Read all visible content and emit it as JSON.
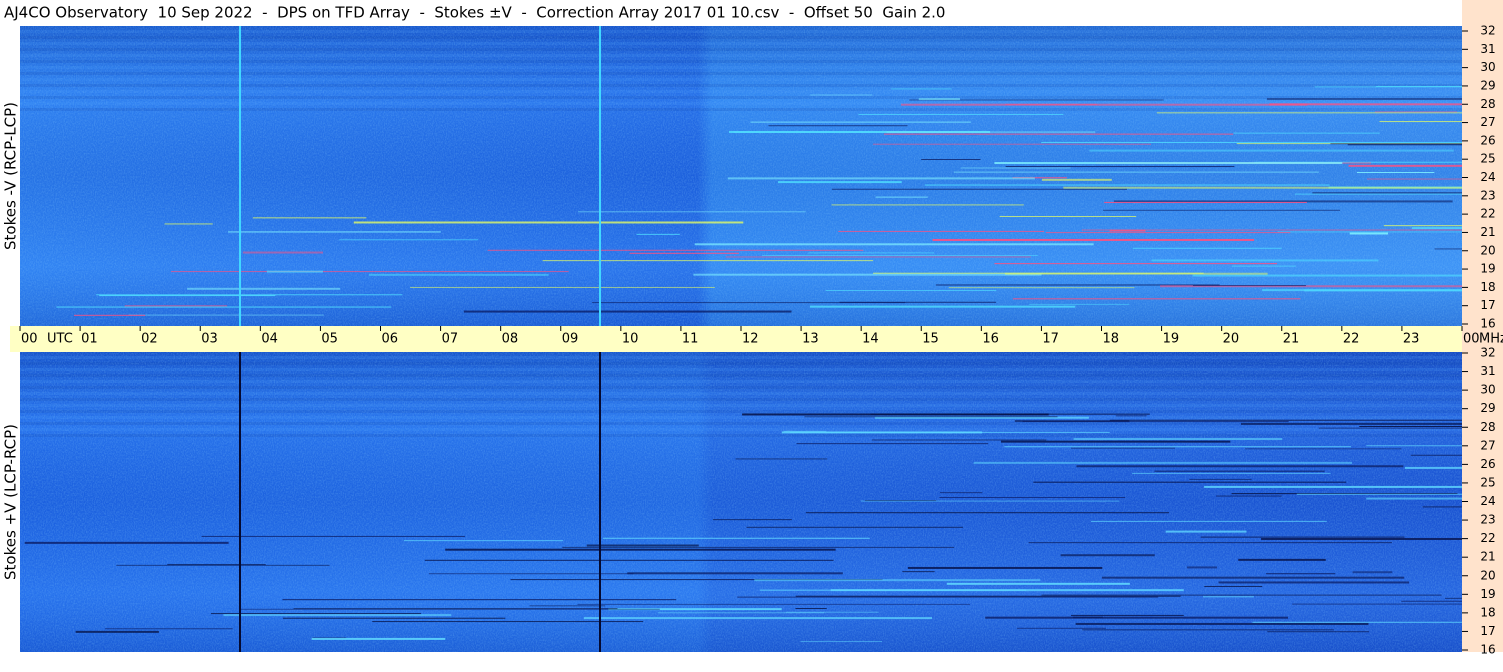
{
  "chart_data": {
    "type": "spectrogram",
    "title": "AJ4CO Observatory  10 Sep 2022  -  DPS on TFD Array  -  Stokes ±V  -  Correction Array 2017 01 10.csv  -  Offset 50  Gain 2.0",
    "xlabel": "UTC",
    "yunit": "MHz",
    "xlim": [
      0,
      24
    ],
    "xticks": [
      {
        "value": 0,
        "label": "00"
      },
      {
        "value": 1,
        "label": "01"
      },
      {
        "value": 2,
        "label": "02"
      },
      {
        "value": 3,
        "label": "03"
      },
      {
        "value": 4,
        "label": "04"
      },
      {
        "value": 5,
        "label": "05"
      },
      {
        "value": 6,
        "label": "06"
      },
      {
        "value": 7,
        "label": "07"
      },
      {
        "value": 8,
        "label": "08"
      },
      {
        "value": 9,
        "label": "09"
      },
      10,
      11,
      12,
      13,
      14,
      15,
      16,
      17,
      18,
      19,
      20,
      21,
      22,
      23,
      {
        "value": 24,
        "label": "00"
      }
    ],
    "panels": [
      {
        "ylabel": "Stokes -V (RCP-LCP)",
        "ylim": [
          16,
          32
        ],
        "yticks": [
          16,
          17,
          18,
          19,
          20,
          21,
          22,
          23,
          24,
          25,
          26,
          27,
          28,
          29,
          30,
          31,
          32
        ]
      },
      {
        "ylabel": "Stokes +V (LCP-RCP)",
        "ylim": [
          16,
          32
        ],
        "yticks": [
          16,
          17,
          18,
          19,
          20,
          21,
          22,
          23,
          24,
          25,
          26,
          27,
          28,
          29,
          30,
          31,
          32
        ]
      }
    ]
  }
}
